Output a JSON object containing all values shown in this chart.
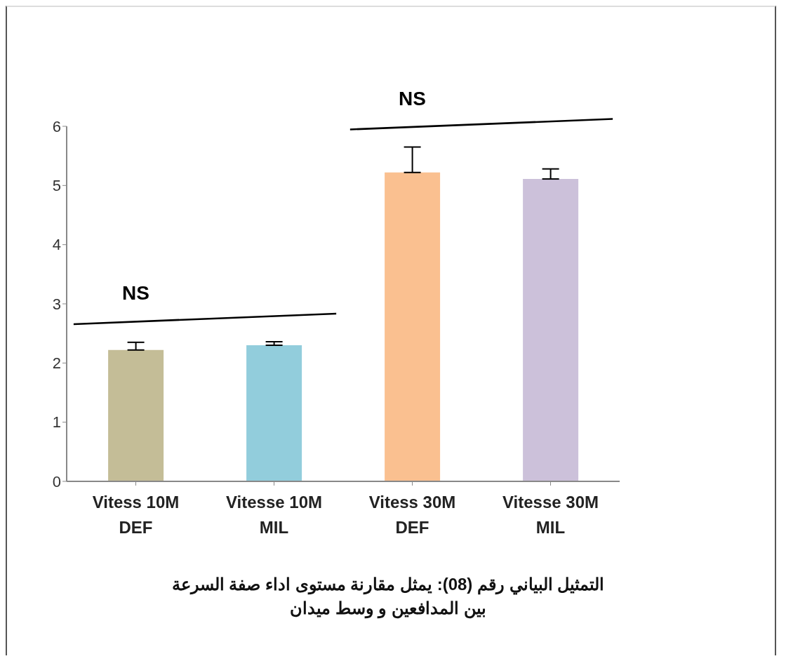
{
  "chart_data": {
    "type": "bar",
    "title": "التمثيل البياني رقم (08): يمثل مقارنة مستوى اداء صفة السرعة بين المدافعين و وسط ميدان",
    "categories": [
      "Vitess 10M DEF",
      "Vitesse 10M MIL",
      "Vitess 30M DEF",
      "Vitesse 30M MIL"
    ],
    "values": [
      2.22,
      2.3,
      5.22,
      5.11
    ],
    "colors": [
      "#c4bd97",
      "#92cddc",
      "#fac090",
      "#ccc1da"
    ],
    "errors": [
      [
        2.22,
        2.35
      ],
      [
        2.3,
        2.36
      ],
      [
        5.22,
        5.65
      ],
      [
        5.11,
        5.28
      ]
    ],
    "ylim": [
      0,
      6
    ],
    "yticks": [
      0,
      1,
      2,
      3,
      4,
      5,
      6
    ],
    "annotations": [
      "NS",
      "NS"
    ],
    "grid": false,
    "legend": false
  }
}
